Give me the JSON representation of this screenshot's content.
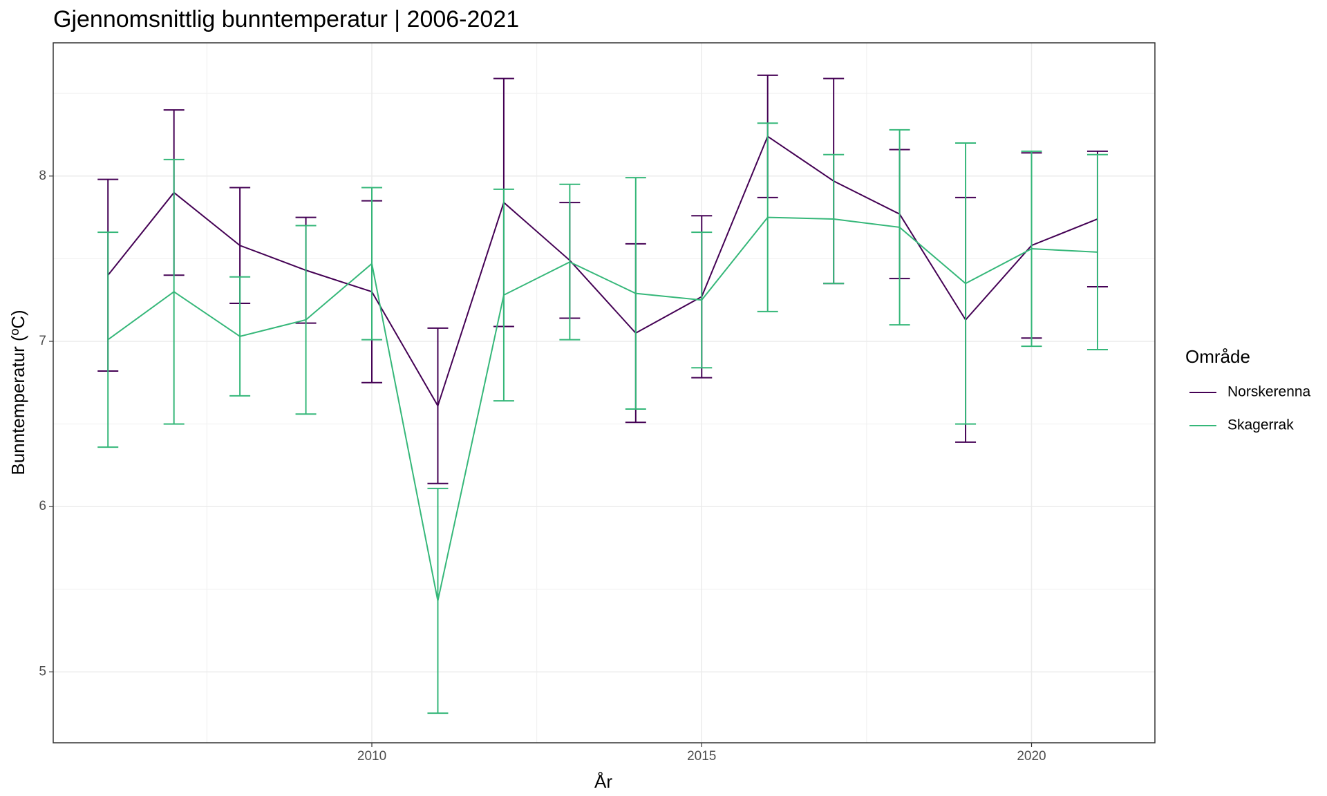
{
  "chart_data": {
    "type": "line",
    "title": "Gjennomsnittlig bunntemperatur | 2006-2021",
    "x_label": "År",
    "y_label": "Bunntemperatur (ºC)",
    "legend_title": "Område",
    "legend_position": "right",
    "grid": true,
    "x": [
      2006,
      2007,
      2008,
      2009,
      2010,
      2011,
      2012,
      2013,
      2014,
      2015,
      2016,
      2017,
      2018,
      2019,
      2020,
      2021
    ],
    "series": [
      {
        "name": "Norskerenna",
        "color": "#440154",
        "values": [
          7.4,
          7.9,
          7.58,
          7.43,
          7.3,
          6.61,
          7.84,
          7.49,
          7.05,
          7.27,
          8.24,
          7.97,
          7.77,
          7.13,
          7.58,
          7.74
        ],
        "errors": [
          0.58,
          0.5,
          0.35,
          0.32,
          0.55,
          0.47,
          0.75,
          0.35,
          0.54,
          0.49,
          0.37,
          0.62,
          0.39,
          0.74,
          0.56,
          0.41
        ]
      },
      {
        "name": "Skagerrak",
        "color": "#35b779",
        "values": [
          7.01,
          7.3,
          7.03,
          7.13,
          7.47,
          5.43,
          7.28,
          7.48,
          7.29,
          7.25,
          7.75,
          7.74,
          7.69,
          7.35,
          7.56,
          7.54
        ],
        "errors": [
          0.65,
          0.8,
          0.36,
          0.57,
          0.46,
          0.68,
          0.64,
          0.47,
          0.7,
          0.41,
          0.57,
          0.39,
          0.59,
          0.85,
          0.59,
          0.59
        ]
      }
    ],
    "xlim": [
      2005.17,
      2021.87
    ],
    "xticks": [
      2010,
      2015,
      2020
    ],
    "ylim": [
      4.571,
      8.806
    ],
    "yticks": [
      5,
      6,
      7,
      8
    ]
  }
}
